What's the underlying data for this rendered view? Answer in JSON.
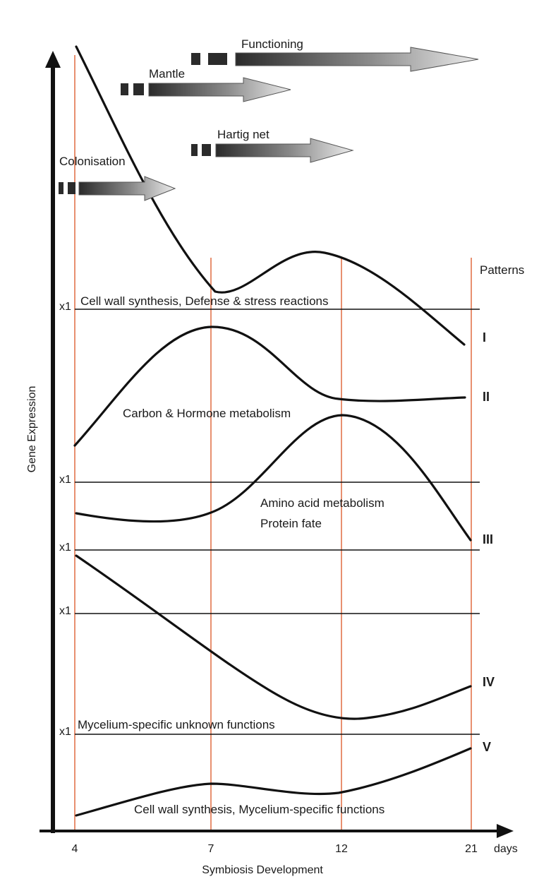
{
  "figure": {
    "y_axis_title": "Gene Expression",
    "x_axis_title": "Symbiosis Development",
    "x_unit": "days",
    "x_ticks": [
      "4",
      "7",
      "12",
      "21"
    ],
    "patterns_header": "Patterns",
    "baseline_label": "x1"
  },
  "stages": [
    {
      "label": "Functioning"
    },
    {
      "label": "Mantle"
    },
    {
      "label": "Hartig net"
    },
    {
      "label": "Colonisation"
    }
  ],
  "patterns": [
    {
      "numeral": "I",
      "description": "Cell wall synthesis, Defense & stress reactions"
    },
    {
      "numeral": "II",
      "description": "Carbon & Hormone metabolism"
    },
    {
      "numeral": "III",
      "description_line1": "Amino acid metabolism",
      "description_line2": "Protein fate"
    },
    {
      "numeral": "IV",
      "description": ""
    },
    {
      "numeral": "V",
      "description": "Mycelium-specific unknown functions",
      "description_bottom": "Cell wall synthesis, Mycelium-specific functions"
    }
  ],
  "colors": {
    "curve": "#111111",
    "timepoint_line": "#e2744c",
    "arrow_dark": "#2b2b2b",
    "arrow_light": "#e2e2e2"
  }
}
